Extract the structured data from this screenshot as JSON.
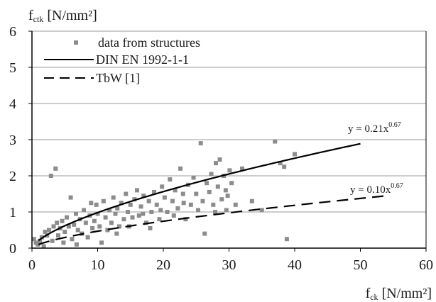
{
  "chart_data": {
    "type": "scatter",
    "ylabel": {
      "main": "f",
      "sub": "ctk",
      "unit": " [N/mm²]"
    },
    "xlabel": {
      "main": "f",
      "sub": "ck",
      "unit": " [N/mm²]"
    },
    "xlim": [
      0,
      60
    ],
    "ylim": [
      0,
      6
    ],
    "xticks": [
      0,
      10,
      20,
      30,
      40,
      50,
      60
    ],
    "yticks": [
      0,
      1,
      2,
      3,
      4,
      5,
      6
    ],
    "grid": "horizontal",
    "legend_position": "top-left",
    "legend": [
      {
        "label": "data from structures",
        "style": "marker"
      },
      {
        "label": "DIN EN 1992-1-1",
        "style": "solid"
      },
      {
        "label": "TbW [1]",
        "style": "dashed"
      }
    ],
    "series": [
      {
        "name": "data from structures",
        "kind": "scatter",
        "color": "#8c8c8c",
        "points": [
          [
            0.3,
            0.25
          ],
          [
            0.6,
            0.15
          ],
          [
            0.9,
            0.1
          ],
          [
            1.2,
            0.2
          ],
          [
            1.5,
            0.3
          ],
          [
            1.8,
            0.05
          ],
          [
            2.0,
            0.45
          ],
          [
            2.3,
            0.35
          ],
          [
            2.6,
            0.5
          ],
          [
            2.9,
            2.0
          ],
          [
            3.3,
            0.6
          ],
          [
            3.6,
            2.2
          ],
          [
            3.8,
            0.7
          ],
          [
            4.0,
            0.35
          ],
          [
            4.3,
            0.55
          ],
          [
            4.6,
            0.75
          ],
          [
            5.0,
            0.45
          ],
          [
            5.3,
            0.85
          ],
          [
            5.6,
            0.6
          ],
          [
            5.9,
            1.4
          ],
          [
            6.1,
            0.25
          ],
          [
            6.4,
            0.65
          ],
          [
            6.7,
            0.95
          ],
          [
            7.0,
            0.5
          ],
          [
            7.3,
            0.8
          ],
          [
            7.6,
            0.4
          ],
          [
            7.9,
            1.05
          ],
          [
            8.2,
            0.7
          ],
          [
            8.5,
            0.3
          ],
          [
            8.8,
            0.9
          ],
          [
            9.0,
            1.25
          ],
          [
            9.2,
            0.55
          ],
          [
            9.5,
            0.75
          ],
          [
            9.8,
            1.2
          ],
          [
            10.0,
            0.95
          ],
          [
            10.3,
            0.6
          ],
          [
            10.6,
            0.15
          ],
          [
            10.9,
            1.3
          ],
          [
            11.2,
            0.85
          ],
          [
            11.5,
            0.5
          ],
          [
            11.8,
            1.05
          ],
          [
            12.1,
            0.7
          ],
          [
            12.4,
            1.4
          ],
          [
            12.7,
            0.95
          ],
          [
            13.0,
            1.1
          ],
          [
            13.3,
            0.6
          ],
          [
            13.6,
            1.25
          ],
          [
            14.0,
            0.8
          ],
          [
            14.3,
            1.5
          ],
          [
            14.6,
            1.0
          ],
          [
            15.0,
            1.2
          ],
          [
            15.3,
            0.85
          ],
          [
            15.6,
            1.35
          ],
          [
            16.0,
            1.6
          ],
          [
            16.3,
            0.9
          ],
          [
            16.6,
            1.15
          ],
          [
            17.0,
            1.45
          ],
          [
            17.4,
            0.7
          ],
          [
            17.8,
            1.3
          ],
          [
            18.2,
            1.0
          ],
          [
            18.6,
            1.55
          ],
          [
            19.0,
            1.2
          ],
          [
            19.4,
            0.8
          ],
          [
            19.8,
            1.7
          ],
          [
            20.2,
            1.4
          ],
          [
            20.6,
            1.0
          ],
          [
            21.0,
            1.9
          ],
          [
            21.4,
            1.3
          ],
          [
            21.8,
            1.6
          ],
          [
            22.2,
            1.1
          ],
          [
            22.6,
            2.2
          ],
          [
            23.0,
            1.5
          ],
          [
            23.4,
            0.8
          ],
          [
            23.8,
            1.75
          ],
          [
            24.2,
            1.2
          ],
          [
            24.6,
            1.95
          ],
          [
            25.0,
            1.5
          ],
          [
            25.3,
            1.05
          ],
          [
            25.7,
            2.9
          ],
          [
            26.0,
            1.3
          ],
          [
            26.3,
            0.4
          ],
          [
            26.6,
            1.8
          ],
          [
            27.0,
            1.55
          ],
          [
            27.3,
            2.05
          ],
          [
            27.6,
            1.2
          ],
          [
            28.0,
            2.35
          ],
          [
            28.3,
            1.7
          ],
          [
            28.6,
            2.45
          ],
          [
            28.9,
            1.35
          ],
          [
            29.2,
            2.0
          ],
          [
            29.5,
            1.6
          ],
          [
            29.8,
            1.45
          ],
          [
            30.1,
            2.15
          ],
          [
            30.4,
            1.8
          ],
          [
            31.0,
            1.2
          ],
          [
            32.0,
            2.2
          ],
          [
            37.0,
            2.95
          ],
          [
            37.8,
            2.35
          ],
          [
            38.4,
            2.25
          ],
          [
            38.8,
            0.25
          ],
          [
            40.0,
            2.6
          ],
          [
            35.0,
            1.05
          ],
          [
            33.5,
            1.3
          ],
          [
            3.1,
            0.2
          ],
          [
            4.8,
            0.15
          ],
          [
            6.8,
            0.1
          ],
          [
            12.9,
            0.4
          ],
          [
            18.0,
            0.55
          ],
          [
            21.6,
            0.9
          ],
          [
            14.8,
            0.6
          ],
          [
            16.9,
            0.95
          ],
          [
            19.6,
            1.05
          ],
          [
            23.1,
            1.25
          ],
          [
            27.9,
            1.0
          ],
          [
            29.6,
            1.05
          ]
        ]
      },
      {
        "name": "DIN EN 1992-1-1",
        "kind": "power",
        "style": "solid",
        "color": "#000000",
        "coefficient": 0.21,
        "exponent": 0.67,
        "x_range": [
          1,
          50
        ],
        "equation": "y = 0.21x",
        "equation_exp": "0.67"
      },
      {
        "name": "TbW [1]",
        "kind": "power",
        "style": "dashed",
        "color": "#000000",
        "coefficient": 0.1,
        "exponent": 0.67,
        "x_range": [
          1,
          54
        ],
        "equation": "y = 0.10x",
        "equation_exp": "0.67"
      }
    ]
  }
}
